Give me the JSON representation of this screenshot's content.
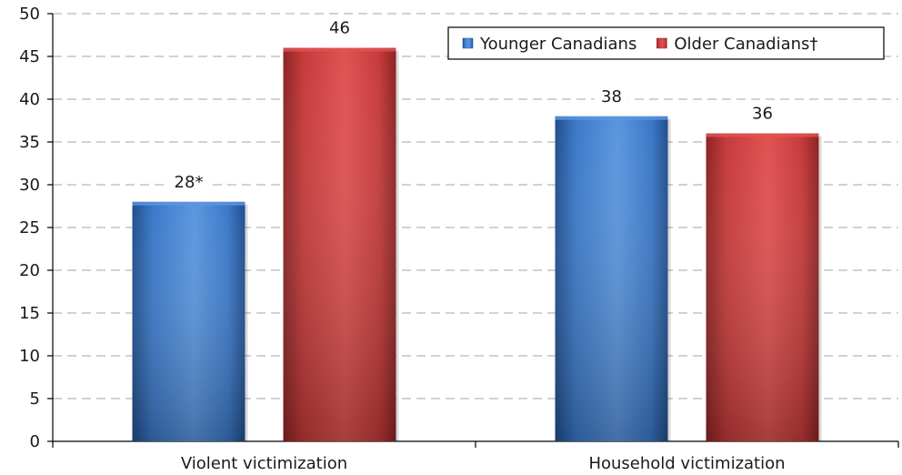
{
  "chart_data": {
    "type": "bar",
    "categories": [
      "Violent victimization",
      "Household victimization"
    ],
    "series": [
      {
        "name": "Younger Canadians",
        "values": [
          28,
          38
        ],
        "labels": [
          "28*",
          "38"
        ],
        "color": "#3b78c8",
        "color_dark": "#1f4e8c",
        "color_light": "#5b96de"
      },
      {
        "name": "Older Canadians†",
        "values": [
          46,
          36
        ],
        "labels": [
          "46",
          "36"
        ],
        "color": "#c63a3a",
        "color_dark": "#8c2323",
        "color_light": "#e05252"
      }
    ],
    "ylim": [
      0,
      50
    ],
    "yticks": [
      0,
      5,
      10,
      15,
      20,
      25,
      30,
      35,
      40,
      45,
      50
    ],
    "grid": true,
    "legend_position": "top-right",
    "title": "",
    "xlabel": "",
    "ylabel": ""
  }
}
